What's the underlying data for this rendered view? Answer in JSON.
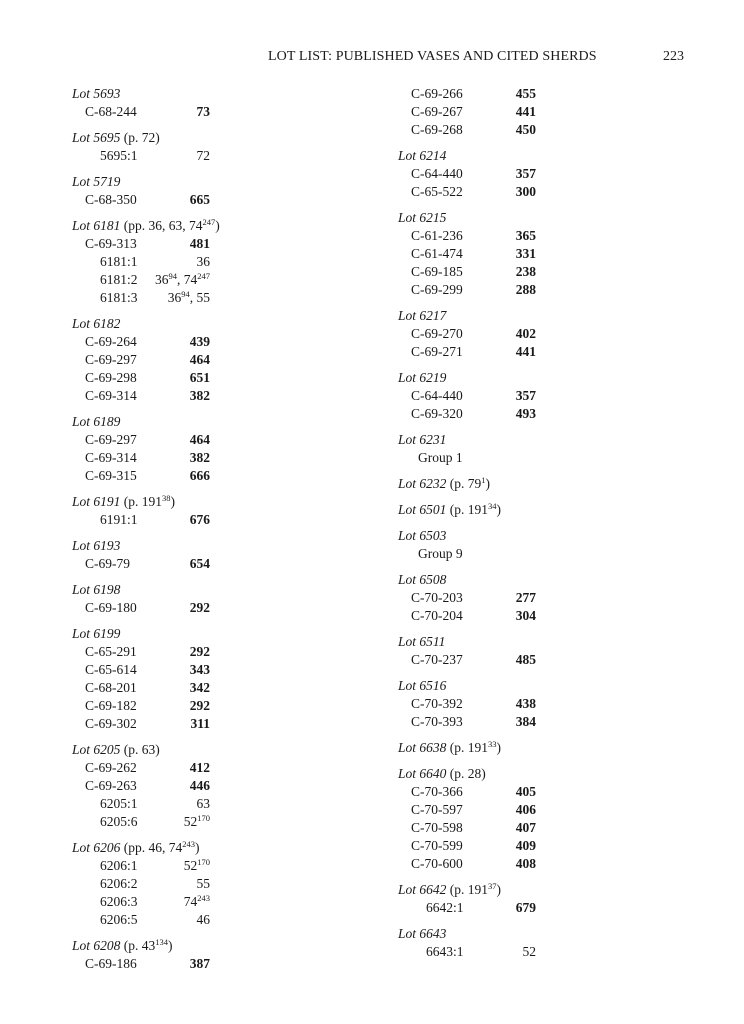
{
  "header": {
    "title": "LOT LIST: PUBLISHED VASES AND CITED SHERDS",
    "page_number": "223"
  },
  "columns": [
    {
      "groups": [
        {
          "lot": "Lot 5693",
          "note": [],
          "entries": [
            {
              "id": "C-68-244",
              "ref": [
                {
                  "text": "73"
                }
              ],
              "bold": true
            }
          ]
        },
        {
          "lot": "Lot 5695",
          "note": [
            {
              "text": " (p. 72)"
            }
          ],
          "entries": [
            {
              "id": "5695:1",
              "ref": [
                {
                  "text": "72"
                }
              ],
              "bold": false
            }
          ]
        },
        {
          "lot": "Lot 5719",
          "note": [],
          "entries": [
            {
              "id": "C-68-350",
              "ref": [
                {
                  "text": "665"
                }
              ],
              "bold": true
            }
          ]
        },
        {
          "lot": "Lot 6181",
          "note": [
            {
              "text": " (pp. 36, 63, 74"
            },
            {
              "text": "247",
              "sup": true
            },
            {
              "text": ")"
            }
          ],
          "entries": [
            {
              "id": "C-69-313",
              "ref": [
                {
                  "text": "481"
                }
              ],
              "bold": true
            },
            {
              "id": "6181:1",
              "ref": [
                {
                  "text": "36"
                }
              ],
              "bold": false
            },
            {
              "id": "6181:2",
              "ref": [
                {
                  "text": "36"
                },
                {
                  "text": "94",
                  "sup": true
                },
                {
                  "text": ",  74"
                },
                {
                  "text": "247",
                  "sup": true
                }
              ],
              "bold": false
            },
            {
              "id": "6181:3",
              "ref": [
                {
                  "text": "36"
                },
                {
                  "text": "94",
                  "sup": true
                },
                {
                  "text": ",  55"
                }
              ],
              "bold": false
            }
          ]
        },
        {
          "lot": "Lot 6182",
          "note": [],
          "entries": [
            {
              "id": "C-69-264",
              "ref": [
                {
                  "text": "439"
                }
              ],
              "bold": true
            },
            {
              "id": "C-69-297",
              "ref": [
                {
                  "text": "464"
                }
              ],
              "bold": true
            },
            {
              "id": "C-69-298",
              "ref": [
                {
                  "text": "651"
                }
              ],
              "bold": true
            },
            {
              "id": "C-69-314",
              "ref": [
                {
                  "text": "382"
                }
              ],
              "bold": true
            }
          ]
        },
        {
          "lot": "Lot 6189",
          "note": [],
          "entries": [
            {
              "id": "C-69-297",
              "ref": [
                {
                  "text": "464"
                }
              ],
              "bold": true
            },
            {
              "id": "C-69-314",
              "ref": [
                {
                  "text": "382"
                }
              ],
              "bold": true
            },
            {
              "id": "C-69-315",
              "ref": [
                {
                  "text": "666"
                }
              ],
              "bold": true
            }
          ]
        },
        {
          "lot": "Lot 6191",
          "note": [
            {
              "text": " (p. 191"
            },
            {
              "text": "38",
              "sup": true
            },
            {
              "text": ")"
            }
          ],
          "entries": [
            {
              "id": "6191:1",
              "ref": [
                {
                  "text": "676"
                }
              ],
              "bold": true
            }
          ]
        },
        {
          "lot": "Lot 6193",
          "note": [],
          "entries": [
            {
              "id": "C-69-79",
              "ref": [
                {
                  "text": "654"
                }
              ],
              "bold": true
            }
          ]
        },
        {
          "lot": "Lot 6198",
          "note": [],
          "entries": [
            {
              "id": "C-69-180",
              "ref": [
                {
                  "text": "292"
                }
              ],
              "bold": true
            }
          ]
        },
        {
          "lot": "Lot 6199",
          "note": [],
          "entries": [
            {
              "id": "C-65-291",
              "ref": [
                {
                  "text": "292"
                }
              ],
              "bold": true
            },
            {
              "id": "C-65-614",
              "ref": [
                {
                  "text": "343"
                }
              ],
              "bold": true
            },
            {
              "id": "C-68-201",
              "ref": [
                {
                  "text": "342"
                }
              ],
              "bold": true
            },
            {
              "id": "C-69-182",
              "ref": [
                {
                  "text": "292"
                }
              ],
              "bold": true
            },
            {
              "id": "C-69-302",
              "ref": [
                {
                  "text": "311"
                }
              ],
              "bold": true
            }
          ]
        },
        {
          "lot": "Lot 6205",
          "note": [
            {
              "text": " (p. 63)"
            }
          ],
          "entries": [
            {
              "id": "C-69-262",
              "ref": [
                {
                  "text": "412"
                }
              ],
              "bold": true
            },
            {
              "id": "C-69-263",
              "ref": [
                {
                  "text": "446"
                }
              ],
              "bold": true
            },
            {
              "id": "6205:1",
              "ref": [
                {
                  "text": "63"
                }
              ],
              "bold": false
            },
            {
              "id": "6205:6",
              "ref": [
                {
                  "text": "52"
                },
                {
                  "text": "170",
                  "sup": true
                }
              ],
              "bold": false
            }
          ]
        },
        {
          "lot": "Lot 6206",
          "note": [
            {
              "text": " (pp. 46, 74"
            },
            {
              "text": "243",
              "sup": true
            },
            {
              "text": ")"
            }
          ],
          "entries": [
            {
              "id": "6206:1",
              "ref": [
                {
                  "text": "52"
                },
                {
                  "text": "170",
                  "sup": true
                }
              ],
              "bold": false
            },
            {
              "id": "6206:2",
              "ref": [
                {
                  "text": "55"
                }
              ],
              "bold": false
            },
            {
              "id": "6206:3",
              "ref": [
                {
                  "text": "74"
                },
                {
                  "text": "243",
                  "sup": true
                }
              ],
              "bold": false
            },
            {
              "id": "6206:5",
              "ref": [
                {
                  "text": "46"
                }
              ],
              "bold": false
            }
          ]
        },
        {
          "lot": "Lot 6208",
          "note": [
            {
              "text": " (p. 43"
            },
            {
              "text": "134",
              "sup": true
            },
            {
              "text": ")"
            }
          ],
          "entries": [
            {
              "id": "C-69-186",
              "ref": [
                {
                  "text": "387"
                }
              ],
              "bold": true
            }
          ]
        }
      ]
    },
    {
      "groups": [
        {
          "lot": "",
          "note": [],
          "entries": [
            {
              "id": "C-69-266",
              "ref": [
                {
                  "text": "455"
                }
              ],
              "bold": true
            },
            {
              "id": "C-69-267",
              "ref": [
                {
                  "text": "441"
                }
              ],
              "bold": true
            },
            {
              "id": "C-69-268",
              "ref": [
                {
                  "text": "450"
                }
              ],
              "bold": true
            }
          ]
        },
        {
          "lot": "Lot 6214",
          "note": [],
          "entries": [
            {
              "id": "C-64-440",
              "ref": [
                {
                  "text": "357"
                }
              ],
              "bold": true
            },
            {
              "id": "C-65-522",
              "ref": [
                {
                  "text": "300"
                }
              ],
              "bold": true
            }
          ]
        },
        {
          "lot": "Lot 6215",
          "note": [],
          "entries": [
            {
              "id": "C-61-236",
              "ref": [
                {
                  "text": "365"
                }
              ],
              "bold": true
            },
            {
              "id": "C-61-474",
              "ref": [
                {
                  "text": "331"
                }
              ],
              "bold": true
            },
            {
              "id": "C-69-185",
              "ref": [
                {
                  "text": "238"
                }
              ],
              "bold": true
            },
            {
              "id": "C-69-299",
              "ref": [
                {
                  "text": "288"
                }
              ],
              "bold": true
            }
          ]
        },
        {
          "lot": "Lot 6217",
          "note": [],
          "entries": [
            {
              "id": "C-69-270",
              "ref": [
                {
                  "text": "402"
                }
              ],
              "bold": true
            },
            {
              "id": "C-69-271",
              "ref": [
                {
                  "text": "441"
                }
              ],
              "bold": true
            }
          ]
        },
        {
          "lot": "Lot 6219",
          "note": [],
          "entries": [
            {
              "id": "C-64-440",
              "ref": [
                {
                  "text": "357"
                }
              ],
              "bold": true
            },
            {
              "id": "C-69-320",
              "ref": [
                {
                  "text": "493"
                }
              ],
              "bold": true
            }
          ]
        },
        {
          "lot": "Lot 6231",
          "note": [],
          "entries": [
            {
              "id": "Group 1",
              "ref": [],
              "bold": false
            }
          ]
        },
        {
          "lot": "Lot 6232",
          "note": [
            {
              "text": " (p. 79"
            },
            {
              "text": "1",
              "sup": true
            },
            {
              "text": ")"
            }
          ],
          "entries": []
        },
        {
          "lot": "Lot 6501",
          "note": [
            {
              "text": " (p. 191"
            },
            {
              "text": "34",
              "sup": true
            },
            {
              "text": ")"
            }
          ],
          "entries": []
        },
        {
          "lot": "Lot 6503",
          "note": [],
          "entries": [
            {
              "id": "Group 9",
              "ref": [],
              "bold": false
            }
          ]
        },
        {
          "lot": "Lot 6508",
          "note": [],
          "entries": [
            {
              "id": "C-70-203",
              "ref": [
                {
                  "text": "277"
                }
              ],
              "bold": true
            },
            {
              "id": "C-70-204",
              "ref": [
                {
                  "text": "304"
                }
              ],
              "bold": true
            }
          ]
        },
        {
          "lot": "Lot 6511",
          "note": [],
          "entries": [
            {
              "id": "C-70-237",
              "ref": [
                {
                  "text": "485"
                }
              ],
              "bold": true
            }
          ]
        },
        {
          "lot": "Lot 6516",
          "note": [],
          "entries": [
            {
              "id": "C-70-392",
              "ref": [
                {
                  "text": "438"
                }
              ],
              "bold": true
            },
            {
              "id": "C-70-393",
              "ref": [
                {
                  "text": "384"
                }
              ],
              "bold": true
            }
          ]
        },
        {
          "lot": "Lot 6638",
          "note": [
            {
              "text": " (p. 191"
            },
            {
              "text": "33",
              "sup": true
            },
            {
              "text": ")"
            }
          ],
          "entries": []
        },
        {
          "lot": "Lot 6640",
          "note": [
            {
              "text": " (p. 28)"
            }
          ],
          "entries": [
            {
              "id": "C-70-366",
              "ref": [
                {
                  "text": "405"
                }
              ],
              "bold": true
            },
            {
              "id": "C-70-597",
              "ref": [
                {
                  "text": "406"
                }
              ],
              "bold": true
            },
            {
              "id": "C-70-598",
              "ref": [
                {
                  "text": "407"
                }
              ],
              "bold": true
            },
            {
              "id": "C-70-599",
              "ref": [
                {
                  "text": "409"
                }
              ],
              "bold": true
            },
            {
              "id": "C-70-600",
              "ref": [
                {
                  "text": "408"
                }
              ],
              "bold": true
            }
          ]
        },
        {
          "lot": "Lot 6642",
          "note": [
            {
              "text": " (p. 191"
            },
            {
              "text": "37",
              "sup": true
            },
            {
              "text": ")"
            }
          ],
          "entries": [
            {
              "id": "6642:1",
              "ref": [
                {
                  "text": "679"
                }
              ],
              "bold": true
            }
          ]
        },
        {
          "lot": "Lot 6643",
          "note": [],
          "entries": [
            {
              "id": "6643:1",
              "ref": [
                {
                  "text": "52"
                }
              ],
              "bold": false
            }
          ]
        }
      ]
    }
  ]
}
